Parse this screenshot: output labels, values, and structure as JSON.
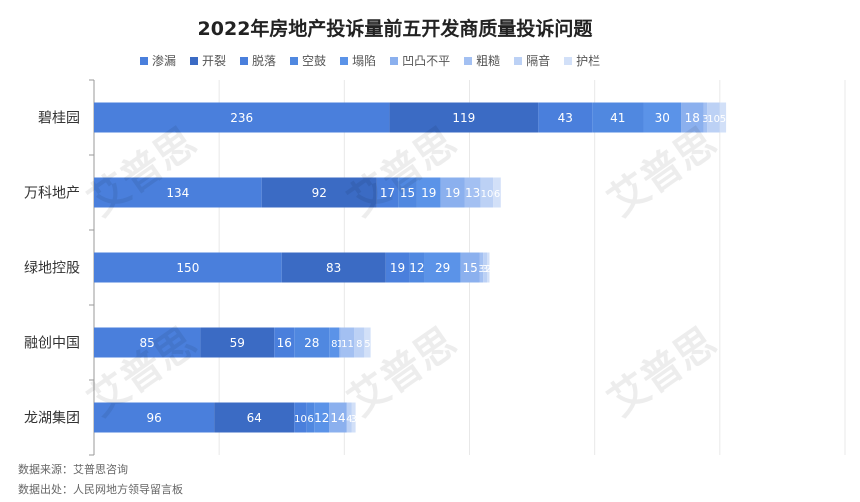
{
  "chart_data": {
    "type": "bar",
    "orientation": "horizontal",
    "stacked": true,
    "title": "2022年房地产投诉量前五开发商质量投诉问题",
    "categories": [
      "碧桂园",
      "万科地产",
      "绿地控股",
      "融创中国",
      "龙湖集团"
    ],
    "series": [
      {
        "name": "渗漏",
        "color": "#4a7fdc",
        "values": [
          236,
          134,
          150,
          85,
          96
        ]
      },
      {
        "name": "开裂",
        "color": "#3b6bc4",
        "values": [
          119,
          92,
          83,
          59,
          64
        ]
      },
      {
        "name": "脱落",
        "color": "#4a7fdc",
        "values": [
          43,
          17,
          19,
          16,
          10
        ]
      },
      {
        "name": "空鼓",
        "color": "#5088e0",
        "values": [
          41,
          15,
          12,
          28,
          6
        ]
      },
      {
        "name": "塌陷",
        "color": "#5b93e8",
        "values": [
          30,
          19,
          29,
          8,
          12
        ]
      },
      {
        "name": "凹凸不平",
        "color": "#8bb0ee",
        "values": [
          18,
          19,
          15,
          1,
          14
        ]
      },
      {
        "name": "粗糙",
        "color": "#a3c0f2",
        "values": [
          3,
          13,
          3,
          11,
          0
        ]
      },
      {
        "name": "隔音",
        "color": "#bcd1f5",
        "values": [
          10,
          10,
          3,
          8,
          4
        ]
      },
      {
        "name": "护栏",
        "color": "#d2e0f8",
        "values": [
          5,
          6,
          2,
          5,
          3
        ]
      }
    ],
    "xlim": [
      0,
      600
    ],
    "grid": true,
    "legend": "top"
  },
  "footer": {
    "source": "数据来源：艾普思咨询",
    "origin": "数据出处：人民网地方领导留言板"
  },
  "watermark": "艾普思"
}
